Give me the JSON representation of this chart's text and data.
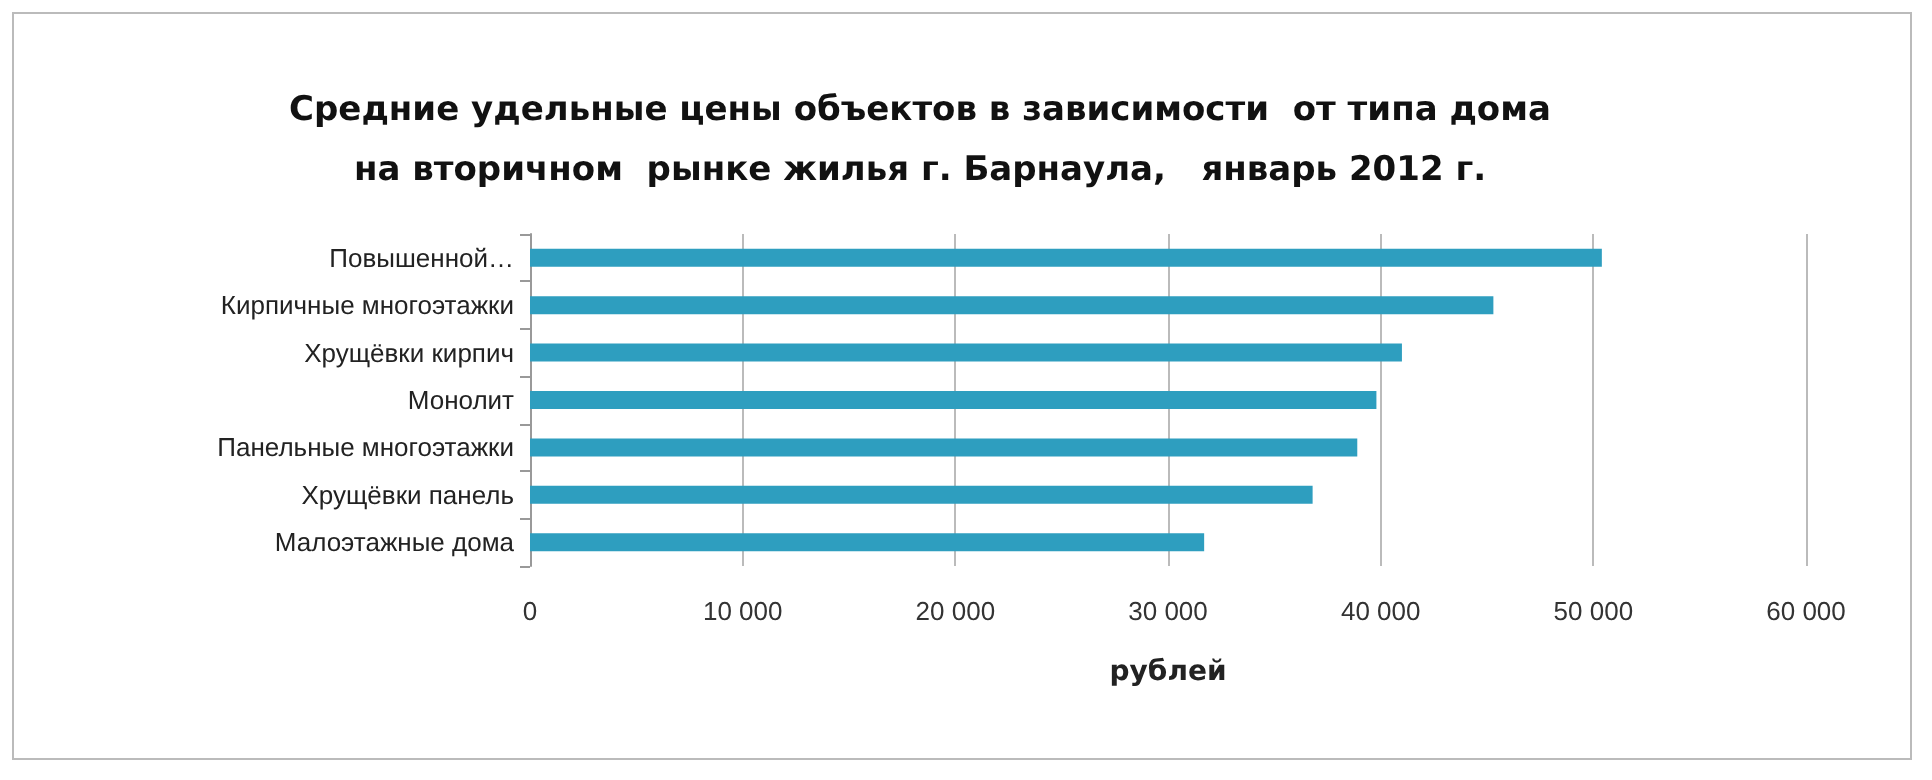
{
  "chart_data": {
    "type": "bar",
    "orientation": "horizontal",
    "title": "Средние удельные цены объектов в зависимости  от типа дома\nна вторичном  рынке жилья г. Барнаула,   январь 2012 г.",
    "xlabel": "рублей",
    "categories": [
      "Повышенной…",
      "Кирпичные многоэтажки",
      "Хрущёвки кирпич",
      "Монолит",
      "Панельные многоэтажки",
      "Хрущёвки панель",
      "Малоэтажные дома"
    ],
    "values": [
      50400,
      45300,
      41000,
      39800,
      38900,
      36800,
      31700
    ],
    "color": "#2e9ebf",
    "xlim": [
      0,
      60000
    ],
    "xticks": [
      {
        "value": 0,
        "label": "0"
      },
      {
        "value": 10000,
        "label": "10 000"
      },
      {
        "value": 20000,
        "label": "20 000"
      },
      {
        "value": 30000,
        "label": "30 000"
      },
      {
        "value": 40000,
        "label": "40 000"
      },
      {
        "value": 50000,
        "label": "50 000"
      },
      {
        "value": 60000,
        "label": "60 000"
      }
    ],
    "grid": "x"
  }
}
